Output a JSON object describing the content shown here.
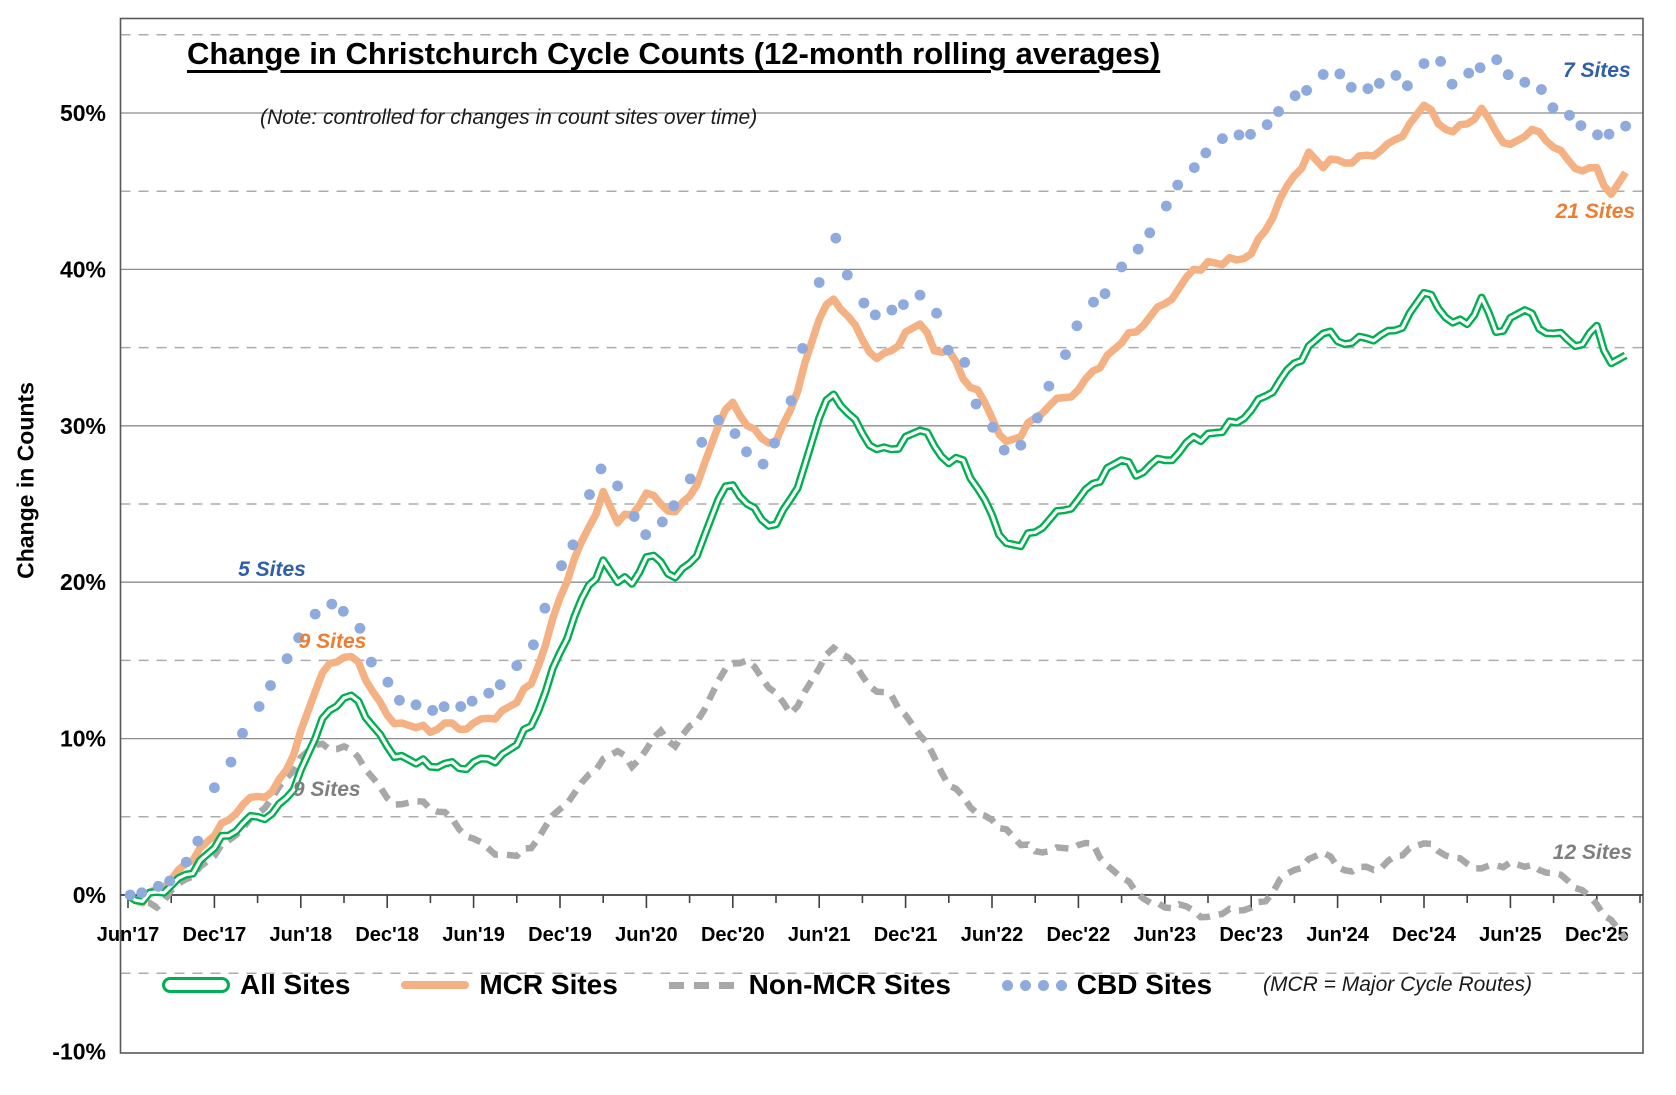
{
  "title": "Change in Christchurch Cycle Counts (12-month rolling averages)",
  "subtitle": "(Note: controlled for changes in count sites over time)",
  "y_axis": {
    "label": "Change in Counts",
    "tick_values": [
      50,
      40,
      30,
      20,
      10,
      0,
      -10
    ],
    "tick_labels": [
      "50%",
      "40%",
      "30%",
      "20%",
      "10%",
      "0%",
      "-10%"
    ]
  },
  "x_axis": {
    "labels": [
      "Jun'17",
      "Dec'17",
      "Jun'18",
      "Dec'18",
      "Jun'19",
      "Dec'19",
      "Jun'20",
      "Dec'20",
      "Jun'21",
      "Dec'21",
      "Jun'22",
      "Dec'22",
      "Jun'23",
      "Dec'23",
      "Jun'24",
      "Dec'24",
      "Jun'25",
      "Dec'25"
    ],
    "label_months": [
      0,
      6,
      12,
      18,
      24,
      30,
      36,
      42,
      48,
      54,
      60,
      66,
      72,
      78,
      84,
      90,
      96,
      102
    ]
  },
  "legend": {
    "items": [
      {
        "label": "All Sites",
        "color": "#00B050",
        "style": "hollow-line"
      },
      {
        "label": "MCR Sites",
        "color": "#F4B183",
        "style": "solid-line"
      },
      {
        "label": "Non-MCR Sites",
        "color": "#A8A8A8",
        "style": "dashed-line"
      },
      {
        "label": "CBD Sites",
        "color": "#8FAADC",
        "style": "dots"
      }
    ],
    "note": "(MCR = Major Cycle Routes)"
  },
  "chart_data": {
    "type": "line",
    "x_unit": "months since Jun 2017, monthly points Jun'17 - Feb'26",
    "ylim": [
      -10,
      56
    ],
    "gridlines": {
      "solid": [
        0,
        10,
        20,
        30,
        40,
        50
      ],
      "dashed": [
        -5,
        5,
        15,
        25,
        35,
        45,
        55
      ]
    },
    "series": [
      {
        "name": "All Sites",
        "color": "#00B050",
        "style": "hollow-line",
        "values": [
          0,
          -0.4,
          0.2,
          0.6,
          1.3,
          2.2,
          3.0,
          3.8,
          4.6,
          5.0,
          5.2,
          6.2,
          8.0,
          10.0,
          11.8,
          12.6,
          12.4,
          10.8,
          9.5,
          8.9,
          8.4,
          8.2,
          8.4,
          8.1,
          8.5,
          8.7,
          9.0,
          9.6,
          10.8,
          13.0,
          15.5,
          17.8,
          19.8,
          21.4,
          20.0,
          19.9,
          21.6,
          21.3,
          20.3,
          21.2,
          22.9,
          25.3,
          26.2,
          25.0,
          24.0,
          23.7,
          25.3,
          27.5,
          30.5,
          32.0,
          30.8,
          29.5,
          28.5,
          28.5,
          29.3,
          29.7,
          28.7,
          27.6,
          27.8,
          26.0,
          24.3,
          22.5,
          22.3,
          23.2,
          24.0,
          24.6,
          25.3,
          26.3,
          27.3,
          27.8,
          26.8,
          27.5,
          27.8,
          28.3,
          29.3,
          29.5,
          29.6,
          30.2,
          31.0,
          31.9,
          32.9,
          34.0,
          35.1,
          35.9,
          35.4,
          35.3,
          35.6,
          35.8,
          36.1,
          37.2,
          38.5,
          37.5,
          36.6,
          36.5,
          38.2,
          36.0,
          36.9,
          37.4,
          36.2,
          35.9,
          35.5,
          35.2,
          36.4,
          34.0,
          34.5
        ]
      },
      {
        "name": "MCR Sites",
        "color": "#F4B183",
        "style": "solid-line",
        "values": [
          0,
          -0.5,
          0.4,
          1.0,
          2.0,
          3.0,
          3.8,
          4.8,
          5.8,
          6.3,
          6.6,
          8.0,
          10.5,
          13.0,
          14.8,
          15.2,
          14.9,
          13.0,
          11.5,
          11.0,
          10.7,
          10.4,
          11.0,
          10.6,
          11.0,
          11.3,
          11.8,
          12.3,
          13.5,
          16.0,
          19.0,
          21.5,
          23.5,
          25.8,
          23.8,
          24.3,
          25.7,
          25.0,
          24.5,
          25.5,
          27.5,
          30.0,
          31.5,
          30.0,
          29.2,
          29.0,
          31.0,
          34.0,
          36.8,
          38.1,
          37.0,
          35.5,
          34.3,
          34.8,
          36.0,
          36.5,
          34.8,
          34.8,
          33.0,
          32.3,
          30.5,
          29.0,
          29.3,
          30.5,
          31.3,
          31.8,
          32.3,
          33.5,
          34.5,
          35.3,
          36.0,
          37.0,
          37.8,
          38.8,
          40.0,
          40.5,
          40.3,
          40.6,
          41.0,
          42.5,
          44.5,
          46.0,
          47.5,
          46.5,
          47.0,
          46.8,
          47.3,
          47.6,
          48.3,
          49.3,
          50.5,
          49.3,
          48.8,
          49.3,
          50.3,
          48.8,
          48.0,
          48.5,
          48.8,
          47.8,
          47.0,
          46.3,
          46.5,
          44.8,
          46.2
        ]
      },
      {
        "name": "Non-MCR Sites",
        "color": "#A8A8A8",
        "style": "dashed-line",
        "values": [
          0,
          -0.5,
          -0.8,
          0.3,
          1.0,
          1.8,
          2.5,
          3.5,
          4.3,
          5.2,
          6.2,
          7.5,
          8.8,
          9.6,
          9.3,
          9.5,
          8.8,
          7.5,
          6.2,
          5.8,
          6.0,
          5.5,
          5.3,
          4.2,
          3.6,
          3.0,
          2.6,
          2.5,
          3.0,
          4.4,
          5.5,
          6.5,
          7.7,
          8.7,
          9.2,
          8.2,
          9.3,
          10.5,
          9.5,
          10.8,
          11.8,
          13.7,
          14.8,
          15.0,
          13.9,
          12.9,
          11.6,
          13.0,
          14.5,
          15.8,
          15.2,
          14.0,
          13.0,
          12.8,
          11.5,
          10.2,
          8.8,
          7.0,
          6.3,
          5.2,
          4.8,
          4.2,
          3.2,
          2.8,
          2.8,
          3.0,
          3.2,
          3.3,
          1.9,
          1.1,
          0.2,
          -0.5,
          -0.8,
          -0.6,
          -1.0,
          -1.4,
          -1.2,
          -1.0,
          -0.8,
          -0.4,
          1.0,
          1.6,
          2.3,
          2.7,
          1.8,
          1.5,
          1.8,
          1.7,
          2.5,
          3.0,
          3.3,
          2.8,
          2.4,
          2.0,
          1.7,
          1.9,
          2.1,
          1.8,
          1.6,
          1.4,
          0.9,
          0.3,
          -0.6,
          -1.6,
          -2.8
        ]
      },
      {
        "name": "CBD Sites",
        "color": "#8FAADC",
        "style": "dots",
        "values": [
          0,
          0.3,
          0.5,
          1.0,
          2.0,
          3.5,
          6.7,
          8.5,
          10.5,
          12.0,
          13.5,
          15.0,
          16.5,
          17.8,
          18.6,
          18.3,
          17.0,
          15.0,
          13.5,
          12.5,
          12.0,
          11.8,
          12.2,
          12.0,
          12.5,
          12.8,
          13.5,
          14.5,
          16.0,
          18.5,
          21.0,
          22.5,
          25.5,
          27.3,
          26.0,
          24.2,
          23.2,
          23.8,
          25.0,
          26.5,
          29.0,
          30.2,
          29.5,
          28.5,
          27.5,
          29.0,
          31.5,
          35.0,
          39.0,
          42.0,
          39.8,
          37.8,
          37.2,
          37.3,
          37.8,
          38.2,
          37.2,
          35.0,
          34.0,
          31.5,
          29.8,
          28.5,
          28.6,
          30.5,
          32.7,
          34.5,
          36.5,
          37.8,
          38.5,
          40.0,
          41.3,
          42.5,
          44.0,
          45.5,
          46.4,
          47.5,
          48.2,
          48.6,
          48.8,
          49.2,
          50.2,
          51.0,
          51.5,
          52.3,
          52.5,
          51.8,
          51.5,
          52.0,
          52.3,
          51.8,
          53.0,
          53.3,
          52.0,
          52.5,
          53.0,
          53.3,
          52.5,
          51.8,
          51.5,
          50.5,
          49.8,
          49.3,
          48.5,
          48.7,
          49.0
        ]
      }
    ],
    "annotations": [
      {
        "text": "5 Sites",
        "series": "CBD Sites",
        "color": "#2F5FA8",
        "month": 10.0,
        "value": 20.8
      },
      {
        "text": "9 Sites",
        "series": "MCR Sites",
        "color": "#ED7D31",
        "month": 14.2,
        "value": 16.2
      },
      {
        "text": "9 Sites",
        "series": "Non-MCR Sites",
        "color": "#7F7F7F",
        "month": 13.8,
        "value": 6.7
      },
      {
        "text": "7 Sites",
        "series": "CBD Sites",
        "color": "#2F5FA8",
        "month": 102.0,
        "value": 52.7
      },
      {
        "text": "21 Sites",
        "series": "MCR Sites",
        "color": "#ED7D31",
        "month": 101.9,
        "value": 43.7
      },
      {
        "text": "12 Sites",
        "series": "Non-MCR Sites",
        "color": "#7F7F7F",
        "month": 101.7,
        "value": 2.7
      }
    ]
  }
}
